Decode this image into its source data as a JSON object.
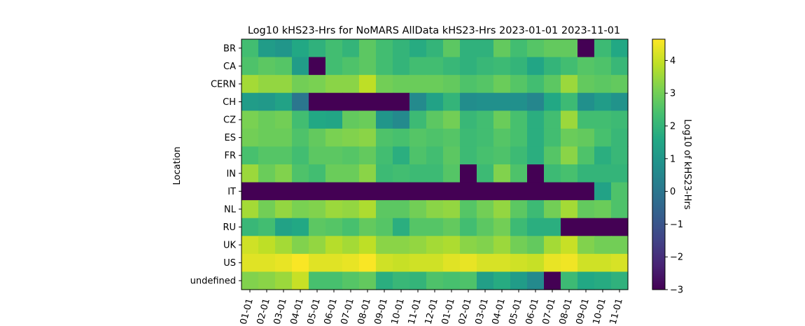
{
  "chart_data": {
    "type": "heatmap",
    "title": "Log10 kHS23-Hrs for NoMARS AllData kHS23-Hrs 2023-01-01 2023-11-01",
    "ylabel": "Location",
    "xlabel": "",
    "colorbar_label": "Log10 of kHS23-Hrs",
    "colormap": "viridis",
    "vmin": -3,
    "vmax": 4.65,
    "colorbar_ticks": [
      -3,
      -2,
      -1,
      0,
      1,
      2,
      3,
      4
    ],
    "x_tick_labels": [
      "01-01",
      "02-01",
      "03-01",
      "04-01",
      "05-01",
      "06-01",
      "07-01",
      "08-01",
      "09-01",
      "10-01",
      "11-01",
      "12-01",
      "01-01",
      "02-01",
      "03-01",
      "04-01",
      "05-01",
      "06-01",
      "07-01",
      "08-01",
      "09-01",
      "10-01",
      "11-01"
    ],
    "rows": [
      "BR",
      "CA",
      "CERN",
      "CH",
      "CZ",
      "ES",
      "FR",
      "IN",
      "IT",
      "NL",
      "RU",
      "UK",
      "US",
      "undefined"
    ],
    "values": [
      [
        2.3,
        1.2,
        1.0,
        1.6,
        1.9,
        2.3,
        2.0,
        2.7,
        2.3,
        2.0,
        1.7,
        2.0,
        2.7,
        1.9,
        1.9,
        2.8,
        2.3,
        2.6,
        2.8,
        2.8,
        -3,
        2.2,
        1.6
      ],
      [
        2.5,
        2.7,
        2.6,
        1.2,
        -3,
        2.3,
        2.5,
        2.7,
        2.3,
        2.0,
        2.3,
        2.3,
        2.1,
        1.9,
        2.1,
        2.2,
        2.0,
        1.5,
        2.0,
        2.3,
        2.6,
        2.5,
        2.1
      ],
      [
        3.6,
        3.4,
        3.4,
        3.0,
        3.1,
        3.3,
        3.3,
        3.9,
        3.0,
        2.9,
        2.9,
        2.9,
        2.8,
        2.5,
        2.6,
        2.9,
        2.6,
        2.3,
        2.7,
        3.5,
        2.8,
        2.7,
        2.8
      ],
      [
        1.2,
        1.1,
        1.4,
        0.0,
        -3,
        -3,
        -3,
        -3,
        -3,
        -3,
        0.6,
        1.4,
        2.0,
        0.7,
        0.8,
        0.8,
        0.8,
        0.5,
        1.6,
        2.2,
        0.8,
        1.2,
        0.9
      ],
      [
        3.1,
        2.9,
        3.0,
        2.3,
        1.6,
        1.5,
        2.8,
        2.9,
        1.0,
        0.6,
        2.2,
        2.7,
        3.0,
        2.1,
        2.3,
        2.9,
        2.4,
        1.8,
        2.3,
        3.5,
        2.3,
        2.3,
        2.2
      ],
      [
        3.0,
        2.9,
        2.9,
        2.5,
        2.8,
        3.1,
        3.2,
        3.3,
        2.5,
        2.4,
        2.6,
        2.5,
        2.6,
        2.2,
        2.3,
        2.6,
        2.4,
        1.8,
        2.3,
        2.9,
        2.8,
        2.4,
        2.1
      ],
      [
        2.4,
        2.6,
        2.6,
        2.3,
        2.7,
        2.7,
        2.6,
        2.8,
        2.3,
        1.8,
        2.5,
        2.3,
        2.7,
        2.2,
        2.4,
        2.5,
        2.2,
        1.8,
        2.6,
        3.3,
        2.5,
        1.8,
        2.1
      ],
      [
        3.5,
        2.9,
        3.2,
        2.5,
        2.3,
        2.9,
        2.9,
        3.3,
        2.2,
        2.3,
        2.2,
        2.2,
        2.6,
        -3,
        2.2,
        3.2,
        2.5,
        -3,
        2.2,
        2.4,
        2.0,
        2.0,
        2.0
      ],
      [
        -3,
        -3,
        -3,
        -3,
        -3,
        -3,
        -3,
        -3,
        -3,
        -3,
        -3,
        -3,
        -3,
        -3,
        -3,
        -3,
        -3,
        -3,
        -3,
        -3,
        -3,
        1.4,
        2.5
      ],
      [
        3.6,
        3.0,
        3.4,
        3.1,
        3.2,
        3.5,
        3.4,
        3.7,
        2.7,
        2.7,
        3.0,
        3.3,
        3.4,
        2.6,
        3.0,
        3.4,
        2.7,
        2.2,
        3.0,
        3.6,
        2.8,
        2.9,
        2.5
      ],
      [
        2.1,
        2.3,
        1.4,
        1.6,
        2.7,
        2.6,
        2.4,
        2.8,
        2.6,
        1.8,
        2.6,
        2.6,
        2.8,
        2.3,
        2.7,
        3.0,
        2.2,
        1.8,
        1.8,
        -3,
        -3,
        -3,
        -3
      ],
      [
        4.1,
        3.9,
        3.6,
        3.2,
        3.4,
        3.8,
        3.6,
        3.9,
        3.3,
        3.3,
        3.4,
        3.6,
        3.7,
        3.3,
        3.2,
        3.5,
        3.0,
        2.8,
        3.6,
        4.0,
        3.2,
        3.0,
        3.0
      ],
      [
        4.3,
        4.3,
        4.4,
        4.6,
        4.3,
        4.3,
        4.4,
        4.6,
        4.1,
        4.0,
        4.1,
        4.1,
        4.3,
        4.4,
        4.2,
        4.2,
        4.1,
        4.0,
        4.4,
        4.5,
        4.1,
        4.1,
        4.2
      ],
      [
        3.2,
        3.3,
        3.5,
        4.0,
        2.4,
        2.4,
        2.6,
        2.8,
        1.8,
        2.1,
        2.0,
        2.5,
        2.4,
        2.5,
        1.3,
        1.7,
        1.2,
        0.6,
        -3,
        2.2,
        1.6,
        1.7,
        1.9
      ]
    ]
  }
}
